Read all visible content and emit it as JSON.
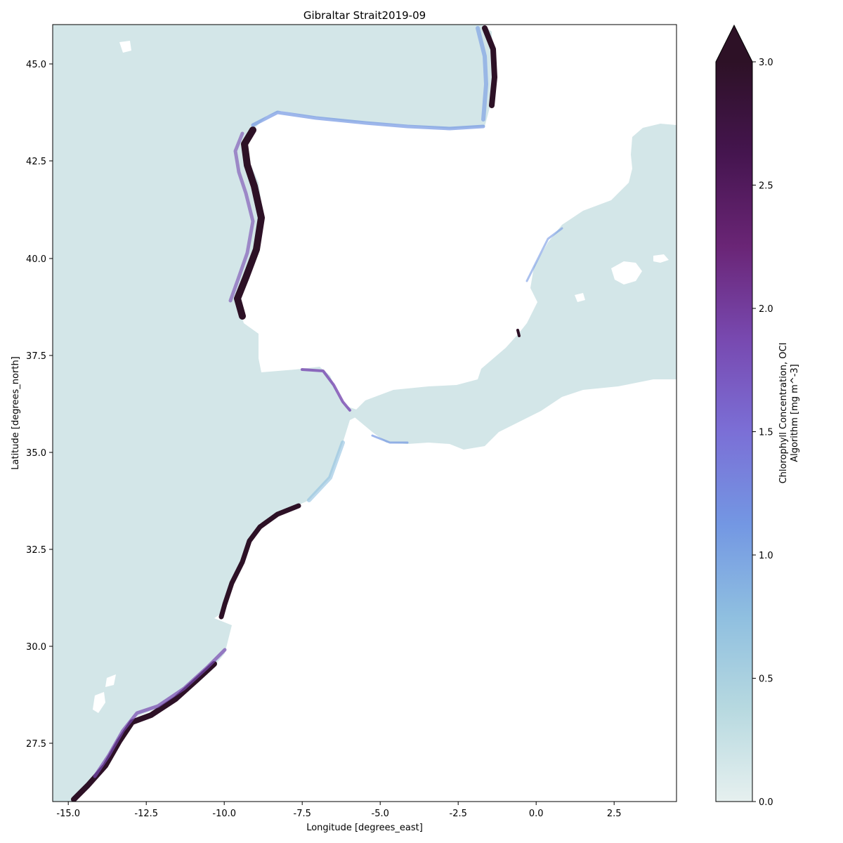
{
  "title": "Gibraltar Strait2019-09",
  "map": {
    "xlabel": "Longitude [degrees_east]",
    "ylabel": "Latitude [degrees_north]",
    "xlim": [
      -15.5,
      4.5
    ],
    "ylim": [
      26.0,
      46.0
    ],
    "xticks": [
      "-15.0",
      "-12.5",
      "-10.0",
      "-7.5",
      "-5.0",
      "-2.5",
      "0.0",
      "2.5"
    ],
    "yticks": [
      "27.5",
      "30.0",
      "32.5",
      "35.0",
      "37.5",
      "40.0",
      "42.5",
      "45.0"
    ],
    "ocean_color": "#d3e6e8",
    "coastal_high_color": "#2d1126",
    "land_color": "#ffffff"
  },
  "colorbar": {
    "label_line1": "Chlorophyll Concentration, OCI",
    "label_line2": "Algorithm [mg m^-3]",
    "ticks": [
      "0.0",
      "0.5",
      "1.0",
      "1.5",
      "2.0",
      "2.5",
      "3.0"
    ],
    "range": [
      0.0,
      3.0
    ],
    "extend": "max",
    "colors": [
      "#e6f0ef",
      "#b7d9e0",
      "#8fbfe0",
      "#7397e3",
      "#7b6fd6",
      "#7849b0",
      "#6a2576",
      "#45154f",
      "#2d1126"
    ]
  }
}
